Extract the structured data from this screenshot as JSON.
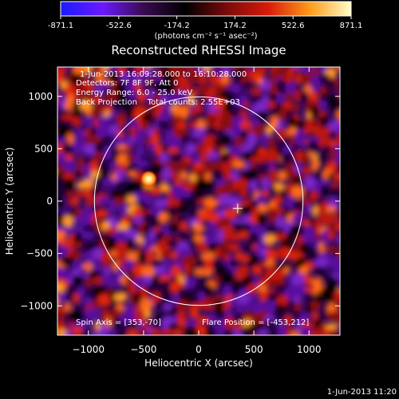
{
  "colorbar": {
    "ticks": [
      "-871.1",
      "-522.6",
      "-174.2",
      "174.2",
      "522.6",
      "871.1"
    ],
    "min": -871.1,
    "max": 871.1,
    "unit_label": "(photons cm⁻² s⁻¹ asec⁻²)",
    "colors": [
      "#1a1aff",
      "#6a1aff",
      "#3a0a50",
      "#000000",
      "#7a0a0a",
      "#d81a0a",
      "#ff9a1a",
      "#ffffc8"
    ]
  },
  "image": {
    "title": "Reconstructed RHESSI Image",
    "info_lines": [
      "1-Jun-2013 16:09:28.000 to 16:10:28.000",
      "Detectors: 7F 8F 9F, Att 0",
      "Energy Range: 6.0 - 25.0 keV",
      "Back Projection    Total counts: 2.55E+03"
    ],
    "spin_axis": "Spin Axis = [353,-70]",
    "flare_position": "Flare Position = [-453,212]",
    "timestamp": "1-Jun-2013 11:20"
  },
  "chart_data": {
    "type": "heatmap",
    "title": "Reconstructed RHESSI Image",
    "xlabel": "Heliocentric X (arcsec)",
    "ylabel": "Heliocentric Y (arcsec)",
    "xlim": [
      -1280,
      1280
    ],
    "ylim": [
      -1280,
      1280
    ],
    "xticks": [
      -1000,
      -500,
      0,
      500,
      1000
    ],
    "yticks": [
      -1000,
      -500,
      0,
      500,
      1000
    ],
    "x_tick_labels": [
      "−1000",
      "−500",
      "0",
      "500",
      "1000"
    ],
    "y_tick_labels": [
      "−1000",
      "−500",
      "0",
      "500",
      "1000"
    ],
    "solar_limb_radius": 945,
    "crosshair": [
      353,
      -70
    ],
    "flare_source": [
      -453,
      212
    ]
  }
}
